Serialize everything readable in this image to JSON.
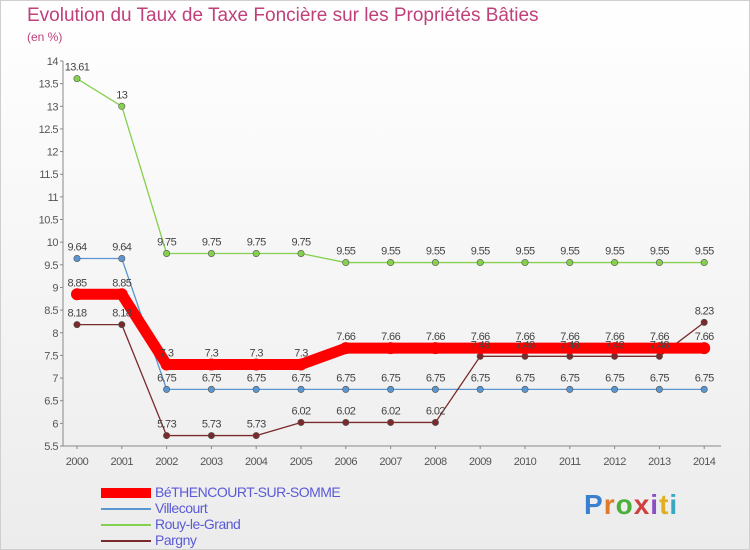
{
  "header": {
    "title": "Evolution du Taux de Taxe Foncière sur les Propriétés Bâties",
    "unit": "(en %)"
  },
  "logo": {
    "text": "Proxiti",
    "colors": [
      "#3a7fd0",
      "#e07a2a",
      "#4caf3a",
      "#d04040",
      "#8a4fc0",
      "#e0b020",
      "#3aa8c0"
    ]
  },
  "chart_data": {
    "type": "line",
    "title": "Evolution du Taux de Taxe Foncière sur les Propriétés Bâties",
    "ylabel": "(en %)",
    "xlabel": "",
    "x": [
      "2000",
      "2001",
      "2002",
      "2003",
      "2004",
      "2005",
      "2006",
      "2007",
      "2008",
      "2009",
      "2010",
      "2011",
      "2012",
      "2013",
      "2014"
    ],
    "ylim": [
      5.5,
      14
    ],
    "yticks": [
      "5.5",
      "6",
      "6.5",
      "7",
      "7.5",
      "8",
      "8.5",
      "9",
      "9.5",
      "10",
      "10.5",
      "11",
      "11.5",
      "12",
      "12.5",
      "13",
      "13.5",
      "14"
    ],
    "grid": false,
    "legend": "bottom-left",
    "series": [
      {
        "name": "BéTHENCOURT-SUR-SOMME",
        "color": "#ff0000",
        "values": [
          8.85,
          8.85,
          7.3,
          7.3,
          7.3,
          7.3,
          7.66,
          7.66,
          7.66,
          7.66,
          7.66,
          7.66,
          7.66,
          7.66,
          7.66
        ],
        "labels": [
          "8.85",
          "8.85",
          "7.3",
          "7.3",
          "7.3",
          "7.3",
          "7.66",
          "7.66",
          "7.66",
          "7.66",
          "7.66",
          "7.66",
          "7.66",
          "7.66",
          "7.66"
        ]
      },
      {
        "name": "Villecourt",
        "color": "#5a96d0",
        "values": [
          9.64,
          9.64,
          6.75,
          6.75,
          6.75,
          6.75,
          6.75,
          6.75,
          6.75,
          6.75,
          6.75,
          6.75,
          6.75,
          6.75,
          6.75
        ],
        "labels": [
          "9.64",
          "9.64",
          "6.75",
          "6.75",
          "6.75",
          "6.75",
          "6.75",
          "6.75",
          "6.75",
          "6.75",
          "6.75",
          "6.75",
          "6.75",
          "6.75",
          "6.75"
        ]
      },
      {
        "name": "Rouy-le-Grand",
        "color": "#86d050",
        "values": [
          13.61,
          13,
          9.75,
          9.75,
          9.75,
          9.75,
          9.55,
          9.55,
          9.55,
          9.55,
          9.55,
          9.55,
          9.55,
          9.55,
          9.55
        ],
        "labels": [
          "13.61",
          "13",
          "9.75",
          "9.75",
          "9.75",
          "9.75",
          "9.55",
          "9.55",
          "9.55",
          "9.55",
          "9.55",
          "9.55",
          "9.55",
          "9.55",
          "9.55"
        ]
      },
      {
        "name": "Pargny",
        "color": "#7a2a2a",
        "values": [
          8.18,
          8.18,
          5.73,
          5.73,
          5.73,
          6.02,
          6.02,
          6.02,
          6.02,
          7.48,
          7.48,
          7.48,
          7.48,
          7.48,
          8.23
        ],
        "labels": [
          "8.18",
          "8.18",
          "5.73",
          "5.73",
          "5.73",
          "6.02",
          "6.02",
          "6.02",
          "6.02",
          "7.48",
          "7.48",
          "7.48",
          "7.48",
          "7.48",
          "8.23"
        ]
      }
    ]
  }
}
